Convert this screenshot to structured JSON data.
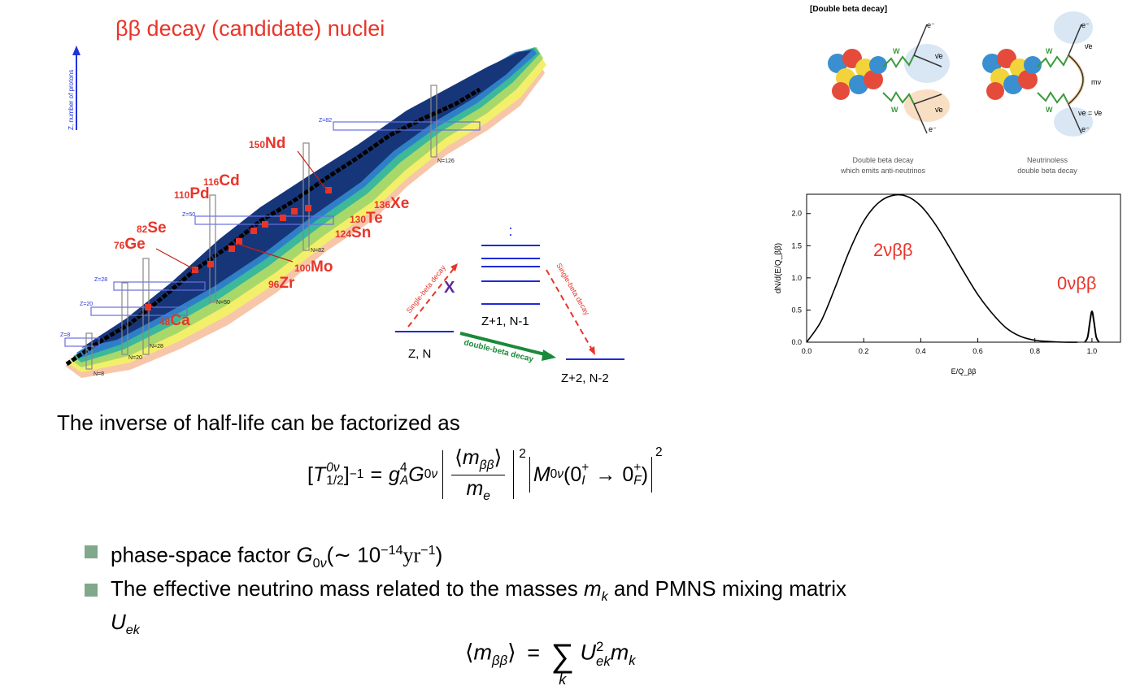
{
  "chart_title": "ββ decay (candidate) nuclei",
  "z_axis_label": "Z, number of protons",
  "magic_z": [
    "Z=8",
    "Z=20",
    "Z=28",
    "Z=50",
    "Z=82"
  ],
  "magic_n": [
    "N=8",
    "N=20",
    "N=28",
    "N=50",
    "N=82",
    "N=126"
  ],
  "nuclei": [
    {
      "mass": "48",
      "sym": "Ca"
    },
    {
      "mass": "76",
      "sym": "Ge"
    },
    {
      "mass": "82",
      "sym": "Se"
    },
    {
      "mass": "96",
      "sym": "Zr"
    },
    {
      "mass": "100",
      "sym": "Mo"
    },
    {
      "mass": "110",
      "sym": "Pd"
    },
    {
      "mass": "116",
      "sym": "Cd"
    },
    {
      "mass": "124",
      "sym": "Sn"
    },
    {
      "mass": "130",
      "sym": "Te"
    },
    {
      "mass": "136",
      "sym": "Xe"
    },
    {
      "mass": "150",
      "sym": "Nd"
    }
  ],
  "levels": {
    "zn": "Z, N",
    "z1": "Z+1, N-1",
    "z2": "Z+2, N-2",
    "single_left": "Single-beta decay",
    "single_right": "Single-beta decay",
    "double": "double-beta decay",
    "dots": ":",
    "x": "X"
  },
  "feynman": {
    "header": "[Double beta decay]",
    "left_caption_1": "Double beta decay",
    "left_caption_2": "which emits anti-neutrinos",
    "right_caption_1": "Neutrinoless",
    "right_caption_2": "double beta decay",
    "w": "W",
    "e": "e⁻",
    "nubar": "ν̄e",
    "mnu": "mν",
    "nu_eq": "νe = ν̄e"
  },
  "colors": {
    "accent_red": "#e8352a",
    "bullet": "#7fa98a",
    "magic_box": "#6670e0",
    "arrow_green": "#1a8a3a"
  },
  "chart_data": {
    "type": "line",
    "xlabel": "E/Q_ββ",
    "ylabel": "dN/d(E/Q_ββ)",
    "xlim": [
      0.0,
      1.1
    ],
    "ylim": [
      0.0,
      2.3
    ],
    "xticks": [
      "0.0",
      "0.2",
      "0.4",
      "0.6",
      "0.8",
      "1.0"
    ],
    "yticks": [
      "0.0",
      "0.5",
      "1.0",
      "1.5",
      "2.0"
    ],
    "series": [
      {
        "name": "2νββ",
        "x": [
          0.0,
          0.05,
          0.1,
          0.15,
          0.2,
          0.25,
          0.3,
          0.35,
          0.4,
          0.45,
          0.5,
          0.55,
          0.6,
          0.65,
          0.7,
          0.75,
          0.8,
          0.85,
          0.9,
          0.95
        ],
        "y": [
          0.0,
          0.32,
          0.85,
          1.42,
          1.88,
          2.16,
          2.28,
          2.27,
          2.12,
          1.84,
          1.48,
          1.1,
          0.74,
          0.45,
          0.22,
          0.09,
          0.03,
          0.01,
          0.0,
          0.0
        ]
      },
      {
        "name": "0νββ",
        "x": [
          0.975,
          0.985,
          0.993,
          1.0,
          1.007,
          1.015,
          1.025
        ],
        "y": [
          0.0,
          0.08,
          0.32,
          0.48,
          0.32,
          0.08,
          0.0
        ]
      }
    ]
  },
  "text": {
    "intro": "The inverse of half-life can be factorized as",
    "bullet1_pre": "phase-space factor ",
    "bullet2_pre": "The effective neutrino mass related to the masses ",
    "bullet2_mid": " and PMNS mixing matrix"
  }
}
